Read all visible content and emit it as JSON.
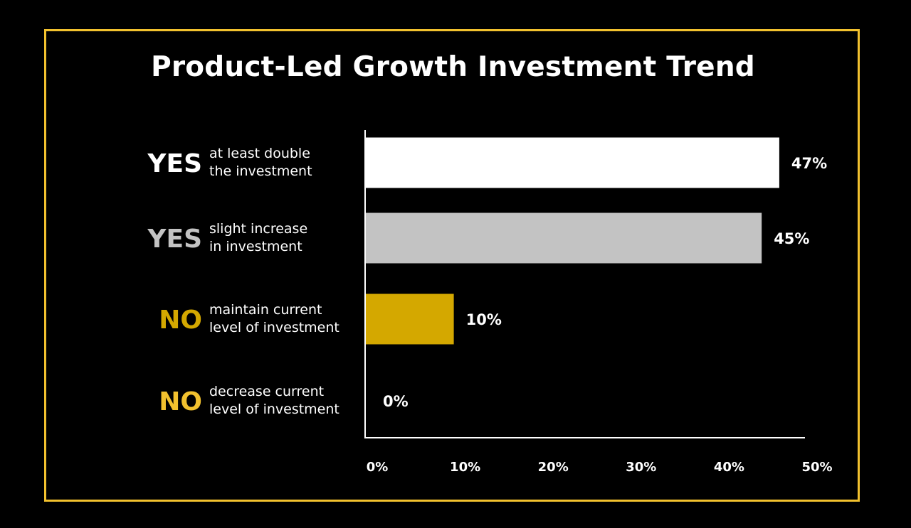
{
  "chart_data": {
    "type": "bar",
    "orientation": "horizontal",
    "title": "Product-Led Growth Investment Trend",
    "categories": [
      {
        "answer": "YES",
        "description": [
          "at least double",
          "the investment"
        ],
        "value": 47,
        "value_label": "47%",
        "bar_color": "#ffffff",
        "answer_color": "#ffffff"
      },
      {
        "answer": "YES",
        "description": [
          "slight increase",
          "in investment"
        ],
        "value": 45,
        "value_label": "45%",
        "bar_color": "#c3c3c3",
        "answer_color": "#c3c3c3"
      },
      {
        "answer": "NO",
        "description": [
          "maintain current",
          "level of investment"
        ],
        "value": 10,
        "value_label": "10%",
        "bar_color": "#d4a800",
        "answer_color": "#d4a800"
      },
      {
        "answer": "NO",
        "description": [
          "decrease current",
          "level of investment"
        ],
        "value": 0,
        "value_label": "0%",
        "bar_color": "#f2c12e",
        "answer_color": "#f2c12e"
      }
    ],
    "x_ticks": [
      "0%",
      "10%",
      "20%",
      "30%",
      "40%",
      "50%"
    ],
    "xlim": [
      0,
      50
    ],
    "xlabel": "",
    "ylabel": "",
    "grid": false,
    "colors": {
      "frame": "#f2c12e",
      "axis": "#ffffff",
      "background": "#000000"
    }
  }
}
